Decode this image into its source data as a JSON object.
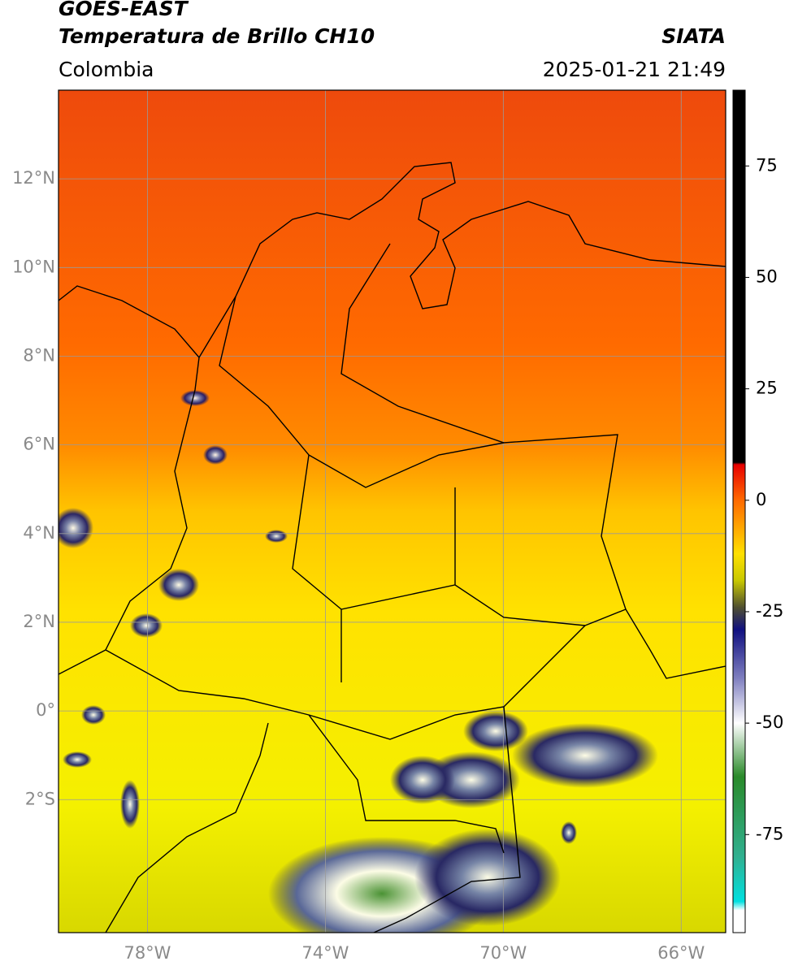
{
  "header": {
    "title": "GOES-EAST",
    "subtitle": "Temperatura de Brillo CH10",
    "agency": "SIATA",
    "region": "Colombia",
    "timestamp": "2025-01-21 21:49"
  },
  "map": {
    "type": "map",
    "xlim": [
      -80,
      -65
    ],
    "ylim": [
      -5,
      14
    ],
    "grid": true,
    "grid_color": "#9a9a9a",
    "border_color": "#000000",
    "xticks": [
      {
        "value": -78,
        "label": "78°W"
      },
      {
        "value": -74,
        "label": "74°W"
      },
      {
        "value": -70,
        "label": "70°W"
      },
      {
        "value": -66,
        "label": "66°W"
      }
    ],
    "yticks": [
      {
        "value": 12,
        "label": "12°N"
      },
      {
        "value": 10,
        "label": "10°N"
      },
      {
        "value": 8,
        "label": "8°N"
      },
      {
        "value": 6,
        "label": "6°N"
      },
      {
        "value": 4,
        "label": "4°N"
      },
      {
        "value": 2,
        "label": "2°N"
      },
      {
        "value": 0,
        "label": "0°"
      },
      {
        "value": -2,
        "label": "2°S"
      }
    ]
  },
  "colorbar": {
    "lim": [
      -97,
      92
    ],
    "ticks": [
      75,
      50,
      25,
      0,
      -25,
      -50,
      -75
    ],
    "stops": [
      {
        "value": 92,
        "color": "#000000"
      },
      {
        "value": 8.5,
        "color": "#000000"
      },
      {
        "value": 8,
        "color": "#e80000"
      },
      {
        "value": 0,
        "color": "#ff6a00"
      },
      {
        "value": -12,
        "color": "#ffe000"
      },
      {
        "value": -18,
        "color": "#c8c800"
      },
      {
        "value": -24,
        "color": "#505030"
      },
      {
        "value": -29,
        "color": "#101080"
      },
      {
        "value": -40,
        "color": "#8080c0"
      },
      {
        "value": -50,
        "color": "#ffffff"
      },
      {
        "value": -62,
        "color": "#2a8a2a"
      },
      {
        "value": -80,
        "color": "#30b090"
      },
      {
        "value": -90,
        "color": "#00e0e0"
      },
      {
        "value": -92,
        "color": "#ffffff"
      },
      {
        "value": -97,
        "color": "#ffffff"
      }
    ]
  }
}
